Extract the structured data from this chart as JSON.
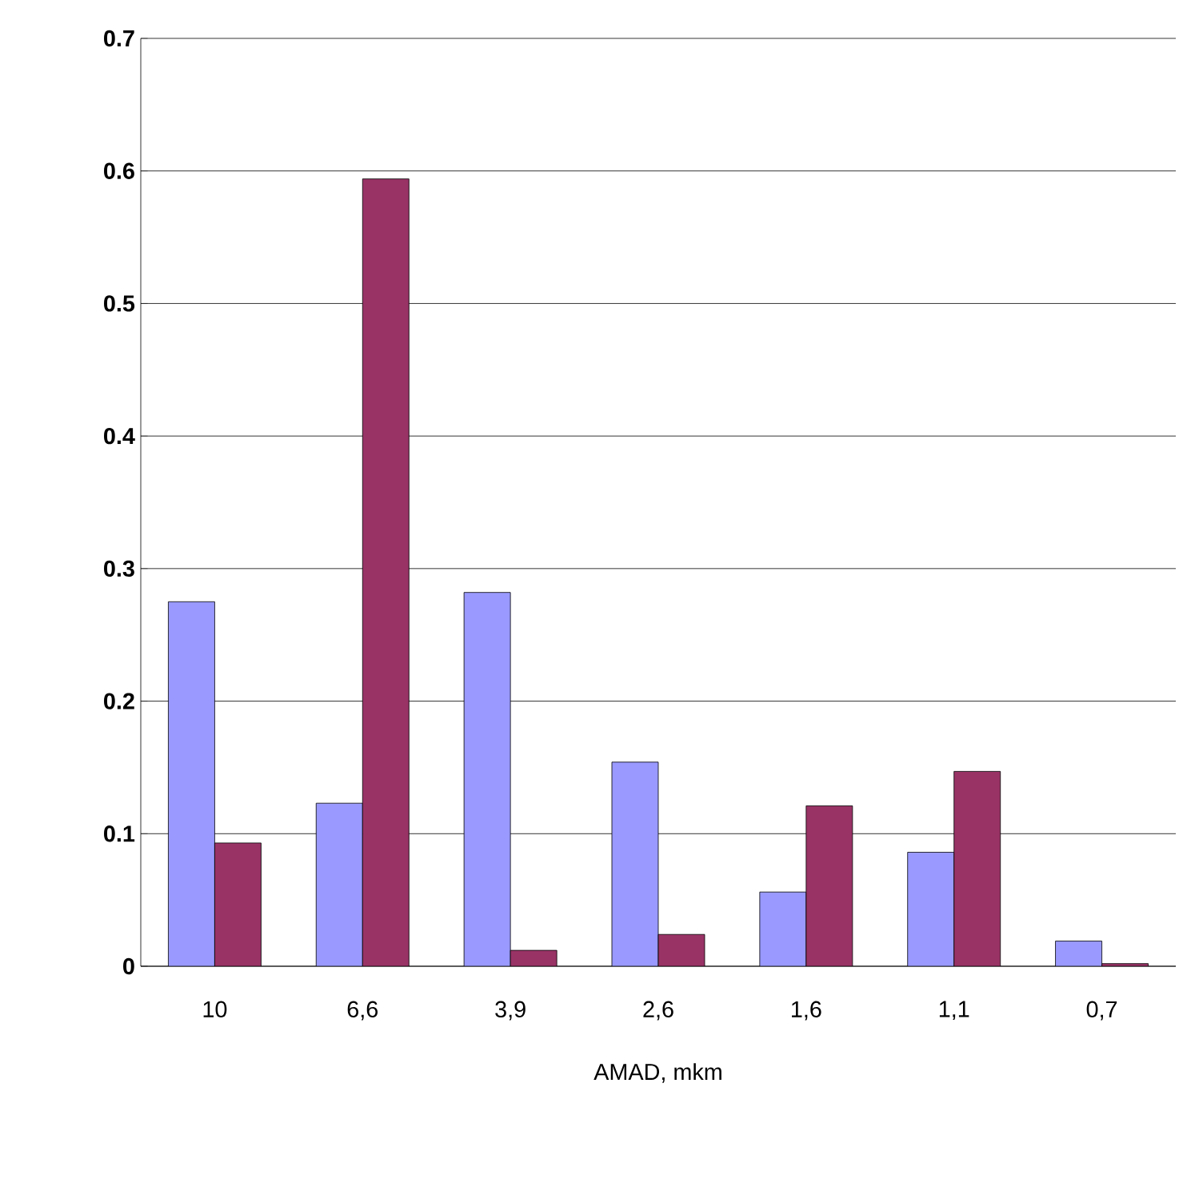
{
  "chart_data": {
    "type": "bar",
    "xlabel": "AMAD, mkm",
    "categories": [
      "10",
      "6,6",
      "3,9",
      "2,6",
      "1,6",
      "1,1",
      "0,7"
    ],
    "series": [
      {
        "color": "#9999ff",
        "values": [
          0.275,
          0.123,
          0.282,
          0.154,
          0.056,
          0.086,
          0.019
        ]
      },
      {
        "color": "#993366",
        "values": [
          0.093,
          0.594,
          0.012,
          0.024,
          0.121,
          0.147,
          0.002
        ]
      }
    ],
    "ylim": [
      0,
      0.7
    ],
    "yticks": [
      0,
      0.1,
      0.2,
      0.3,
      0.4,
      0.5,
      0.6,
      0.7
    ],
    "grid": "y"
  }
}
